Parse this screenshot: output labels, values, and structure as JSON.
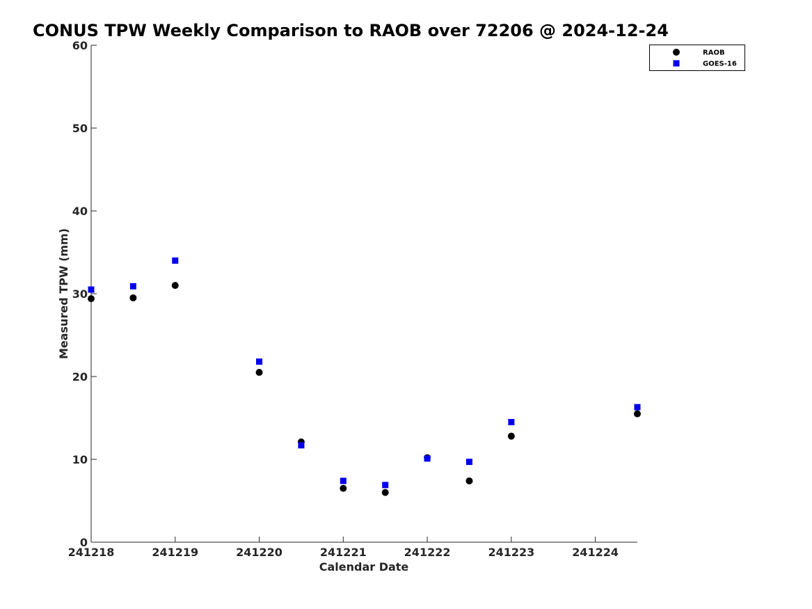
{
  "chart_data": {
    "type": "scatter",
    "title": "CONUS TPW Weekly Comparison to RAOB over 72206 @ 2024-12-24",
    "xlabel": "Calendar Date",
    "ylabel": "Measured TPW (mm)",
    "x_tick_labels": [
      "241218",
      "241219",
      "241220",
      "241221",
      "241222",
      "241223",
      "241224"
    ],
    "x_ticks": [
      0,
      1,
      2,
      3,
      4,
      5,
      6
    ],
    "xlim": [
      0,
      6.5
    ],
    "y_ticks": [
      0,
      10,
      20,
      30,
      40,
      50,
      60
    ],
    "ylim": [
      0,
      60
    ],
    "grid": false,
    "legend_position": "top-right",
    "series": [
      {
        "name": "RAOB",
        "marker": "circle",
        "color": "#000000",
        "x": [
          0,
          0.5,
          1,
          2,
          2.5,
          3,
          3.5,
          4,
          4.5,
          5,
          6.5
        ],
        "y": [
          29.4,
          29.5,
          31.0,
          20.5,
          12.1,
          6.5,
          6.0,
          10.2,
          7.4,
          12.8,
          15.5
        ]
      },
      {
        "name": "GOES-16",
        "marker": "square",
        "color": "#0000ee",
        "x": [
          0,
          0.5,
          1,
          2,
          2.5,
          3,
          3.5,
          4,
          4.5,
          5,
          6.5
        ],
        "y": [
          30.5,
          30.9,
          34.0,
          21.8,
          11.7,
          7.4,
          6.9,
          10.1,
          9.7,
          14.5,
          16.3
        ]
      }
    ]
  }
}
